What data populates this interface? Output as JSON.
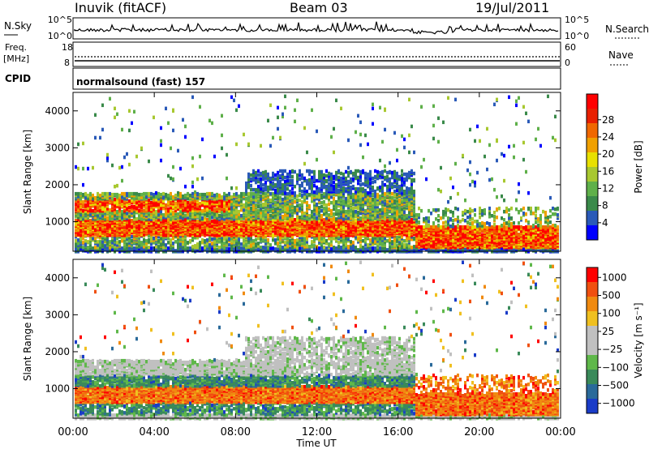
{
  "header": {
    "station": "Inuvik (fitACF)",
    "beam": "Beam 03",
    "date": "19/Jul/2011"
  },
  "noise_panel": {
    "left_label": "N.Sky",
    "right_label": "N.Search",
    "left_ticks": [
      "10^5",
      "10^0"
    ],
    "right_ticks": [
      "10^5",
      "10^0"
    ]
  },
  "freq_panel": {
    "left_label_1": "Freq.",
    "left_label_2": "[MHz]",
    "right_label": "Nave",
    "left_ticks": [
      "18",
      "8"
    ],
    "right_ticks": [
      "60",
      "0"
    ]
  },
  "cpid_panel": {
    "label": "CPID",
    "text": "normalsound (fast) 157"
  },
  "chart_data": [
    {
      "type": "heatmap",
      "name": "power",
      "xlabel": "Time UT",
      "ylabel": "Slant Range [km]",
      "x_ticks": [
        "00:00",
        "04:00",
        "08:00",
        "12:00",
        "16:00",
        "20:00",
        "00:00"
      ],
      "y_ticks": [
        1000,
        2000,
        3000,
        4000
      ],
      "ylim": [
        200,
        4500
      ],
      "colorbar": {
        "label": "Power [dB]",
        "ticks": [
          4,
          8,
          12,
          16,
          20,
          24,
          28
        ],
        "colors": [
          "#0000ff",
          "#2a5ab8",
          "#3a8a4a",
          "#5fb04a",
          "#a8c830",
          "#e8e000",
          "#f0a000",
          "#f06800",
          "#e82000",
          "#ff0000"
        ]
      }
    },
    {
      "type": "heatmap",
      "name": "velocity",
      "xlabel": "Time UT",
      "ylabel": "Slant Range [km]",
      "x_ticks": [
        "00:00",
        "04:00",
        "08:00",
        "12:00",
        "16:00",
        "20:00",
        "00:00"
      ],
      "y_ticks": [
        1000,
        2000,
        3000,
        4000
      ],
      "ylim": [
        200,
        4500
      ],
      "colorbar": {
        "label": "Velocity [m s⁻¹]",
        "ticks": [
          "1000",
          "500",
          "100",
          "25",
          "−25",
          "−100",
          "−500",
          "−1000"
        ],
        "colors": [
          "#1a3cc8",
          "#2a6a9a",
          "#3a8a5a",
          "#5fb84a",
          "#c0c0c0",
          "#c0c0c0",
          "#f0c020",
          "#f08a10",
          "#f05010",
          "#ff0000"
        ]
      }
    }
  ]
}
